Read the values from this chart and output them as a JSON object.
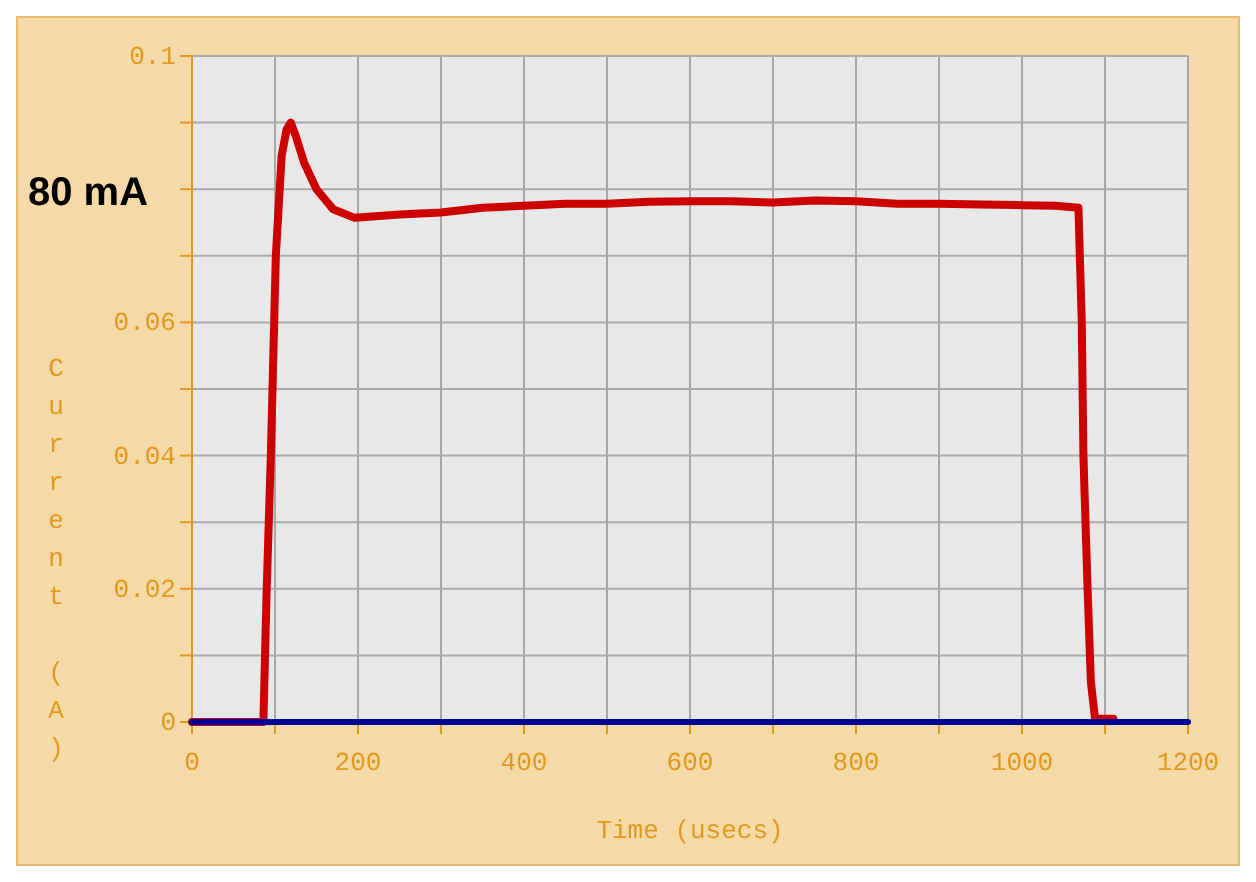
{
  "chart_data": {
    "type": "line",
    "xlabel": "Time (usecs)",
    "ylabel": "Current (A)",
    "annotations": [
      "80 mA"
    ],
    "xlim": [
      0,
      1200
    ],
    "ylim": [
      0,
      0.1
    ],
    "xticks": [
      0,
      {
        "value": 100,
        "label": null
      },
      200,
      {
        "value": 300,
        "label": null
      },
      400,
      {
        "value": 500,
        "label": null
      },
      600,
      {
        "value": 700,
        "label": null
      },
      800,
      {
        "value": 900,
        "label": null
      },
      1000,
      {
        "value": 1100,
        "label": null
      },
      1200
    ],
    "yticks": [
      0,
      {
        "value": 0.01,
        "label": null
      },
      0.02,
      {
        "value": 0.03,
        "label": null
      },
      0.04,
      {
        "value": 0.05,
        "label": null
      },
      0.06,
      {
        "value": 0.07,
        "label": null
      },
      {
        "value": 0.08,
        "label": null
      },
      {
        "value": 0.09,
        "label": null
      },
      0.1
    ],
    "grid": true,
    "marker": "none",
    "line_style": "solid",
    "series": [
      {
        "color": "#cc0000",
        "x": [
          0,
          86,
          90,
          95,
          101,
          108,
          114,
          119,
          125,
          135,
          150,
          170,
          196,
          250,
          300,
          350,
          400,
          450,
          500,
          550,
          600,
          650,
          700,
          750,
          800,
          850,
          900,
          950,
          1000,
          1040,
          1068,
          1072,
          1074,
          1079,
          1083,
          1088,
          1095,
          1110
        ],
        "values": [
          0,
          0,
          0.02,
          0.04,
          0.07,
          0.085,
          0.089,
          0.09,
          0.088,
          0.084,
          0.08,
          0.077,
          0.0757,
          0.0762,
          0.0765,
          0.0772,
          0.0775,
          0.0778,
          0.0778,
          0.0781,
          0.0782,
          0.0782,
          0.078,
          0.0783,
          0.0782,
          0.0778,
          0.0778,
          0.0777,
          0.0776,
          0.0775,
          0.0772,
          0.06,
          0.04,
          0.02,
          0.006,
          0.0005,
          0.0005,
          0.0005
        ]
      },
      {
        "color": "#000099",
        "x": [
          0,
          1200
        ],
        "values": [
          0,
          0
        ]
      }
    ]
  }
}
